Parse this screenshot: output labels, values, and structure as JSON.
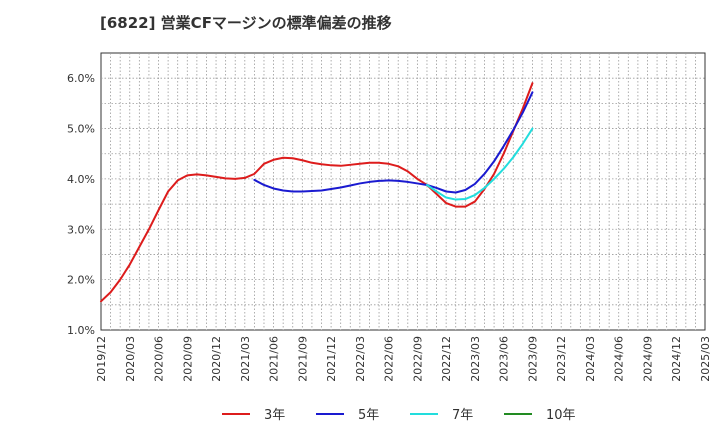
{
  "chart_data": {
    "type": "line",
    "title": "[6822]  営業CFマージンの標準偏差の推移",
    "xlabel": "",
    "ylabel": "",
    "ylim": [
      1.0,
      6.5
    ],
    "y_ticks": [
      "1.0%",
      "2.0%",
      "3.0%",
      "4.0%",
      "5.0%",
      "6.0%"
    ],
    "y_tick_values": [
      1.0,
      2.0,
      3.0,
      4.0,
      5.0,
      6.0
    ],
    "x_ticks": [
      "2019/12",
      "2020/03",
      "2020/06",
      "2020/09",
      "2020/12",
      "2021/03",
      "2021/06",
      "2021/09",
      "2021/12",
      "2022/03",
      "2022/06",
      "2022/09",
      "2022/12",
      "2023/03",
      "2023/06",
      "2023/09",
      "2023/12",
      "2024/03",
      "2024/06",
      "2024/09",
      "2024/12",
      "2025/03"
    ],
    "grid": true,
    "legend_position": "bottom",
    "series": [
      {
        "name": "3年",
        "color": "#dd1c1c",
        "values": [
          [
            0,
            1.57
          ],
          [
            1,
            1.75
          ],
          [
            2,
            2.0
          ],
          [
            3,
            2.3
          ],
          [
            4,
            2.65
          ],
          [
            5,
            3.0
          ],
          [
            6,
            3.38
          ],
          [
            7,
            3.75
          ],
          [
            8,
            3.97
          ],
          [
            9,
            4.07
          ],
          [
            10,
            4.09
          ],
          [
            11,
            4.07
          ],
          [
            12,
            4.04
          ],
          [
            13,
            4.01
          ],
          [
            14,
            4.0
          ],
          [
            15,
            4.02
          ],
          [
            16,
            4.1
          ],
          [
            17,
            4.3
          ],
          [
            18,
            4.38
          ],
          [
            19,
            4.42
          ],
          [
            20,
            4.41
          ],
          [
            21,
            4.37
          ],
          [
            22,
            4.32
          ],
          [
            23,
            4.29
          ],
          [
            24,
            4.27
          ],
          [
            25,
            4.26
          ],
          [
            26,
            4.28
          ],
          [
            27,
            4.3
          ],
          [
            28,
            4.32
          ],
          [
            29,
            4.32
          ],
          [
            30,
            4.3
          ],
          [
            31,
            4.25
          ],
          [
            32,
            4.15
          ],
          [
            33,
            4.0
          ],
          [
            34,
            3.88
          ],
          [
            35,
            3.7
          ],
          [
            36,
            3.52
          ],
          [
            37,
            3.45
          ],
          [
            38,
            3.45
          ],
          [
            39,
            3.55
          ],
          [
            40,
            3.8
          ],
          [
            41,
            4.1
          ],
          [
            42,
            4.5
          ],
          [
            43,
            4.95
          ],
          [
            44,
            5.4
          ],
          [
            45,
            5.9
          ]
        ]
      },
      {
        "name": "5年",
        "color": "#1a1ad0",
        "values": [
          [
            16,
            3.98
          ],
          [
            17,
            3.88
          ],
          [
            18,
            3.81
          ],
          [
            19,
            3.77
          ],
          [
            20,
            3.75
          ],
          [
            21,
            3.75
          ],
          [
            22,
            3.76
          ],
          [
            23,
            3.77
          ],
          [
            24,
            3.8
          ],
          [
            25,
            3.83
          ],
          [
            26,
            3.87
          ],
          [
            27,
            3.91
          ],
          [
            28,
            3.94
          ],
          [
            29,
            3.96
          ],
          [
            30,
            3.97
          ],
          [
            31,
            3.96
          ],
          [
            32,
            3.94
          ],
          [
            33,
            3.91
          ],
          [
            34,
            3.88
          ],
          [
            35,
            3.82
          ],
          [
            36,
            3.75
          ],
          [
            37,
            3.73
          ],
          [
            38,
            3.78
          ],
          [
            39,
            3.9
          ],
          [
            40,
            4.1
          ],
          [
            41,
            4.35
          ],
          [
            42,
            4.65
          ],
          [
            43,
            4.97
          ],
          [
            44,
            5.32
          ],
          [
            45,
            5.72
          ]
        ]
      },
      {
        "name": "7年",
        "color": "#22dddd",
        "values": [
          [
            34,
            3.88
          ],
          [
            35,
            3.75
          ],
          [
            36,
            3.63
          ],
          [
            37,
            3.59
          ],
          [
            38,
            3.6
          ],
          [
            39,
            3.68
          ],
          [
            40,
            3.82
          ],
          [
            41,
            4.0
          ],
          [
            42,
            4.2
          ],
          [
            43,
            4.43
          ],
          [
            44,
            4.7
          ],
          [
            45,
            5.0
          ]
        ]
      },
      {
        "name": "10年",
        "color": "#228b22",
        "values": []
      }
    ]
  }
}
